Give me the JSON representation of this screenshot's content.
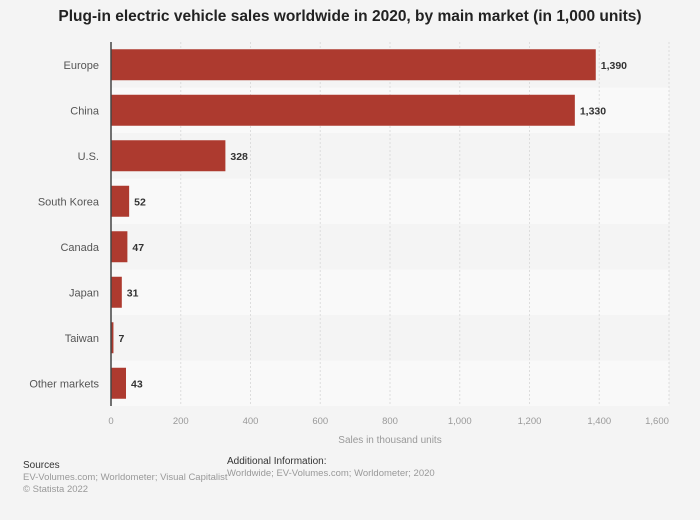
{
  "chart_data": {
    "type": "bar",
    "orientation": "horizontal",
    "title": "Plug-in electric vehicle sales worldwide in 2020, by main market (in 1,000 units)",
    "xlabel": "Sales in thousand units",
    "ylabel": "",
    "categories": [
      "Europe",
      "China",
      "U.S.",
      "South Korea",
      "Canada",
      "Japan",
      "Taiwan",
      "Other markets"
    ],
    "values": [
      1390,
      1330,
      328,
      52,
      47,
      31,
      7,
      43
    ],
    "value_labels": [
      "1,390",
      "1,330",
      "328",
      "52",
      "47",
      "31",
      "7",
      "43"
    ],
    "xlim": [
      0,
      1600
    ],
    "xticks": [
      0,
      200,
      400,
      600,
      800,
      1000,
      1200,
      1400,
      1600
    ],
    "xtick_labels": [
      "0",
      "200",
      "400",
      "600",
      "800",
      "1,000",
      "1,200",
      "1,400",
      "1,600"
    ],
    "grid": true,
    "bar_color": "#ad3a2f"
  },
  "footer": {
    "sources_title": "Sources",
    "sources_text": "EV-Volumes.com; Worldometer; Visual Capitalist",
    "copyright": "© Statista 2022",
    "additional_title": "Additional Information:",
    "additional_text": "Worldwide; EV-Volumes.com; Worldometer; 2020"
  }
}
